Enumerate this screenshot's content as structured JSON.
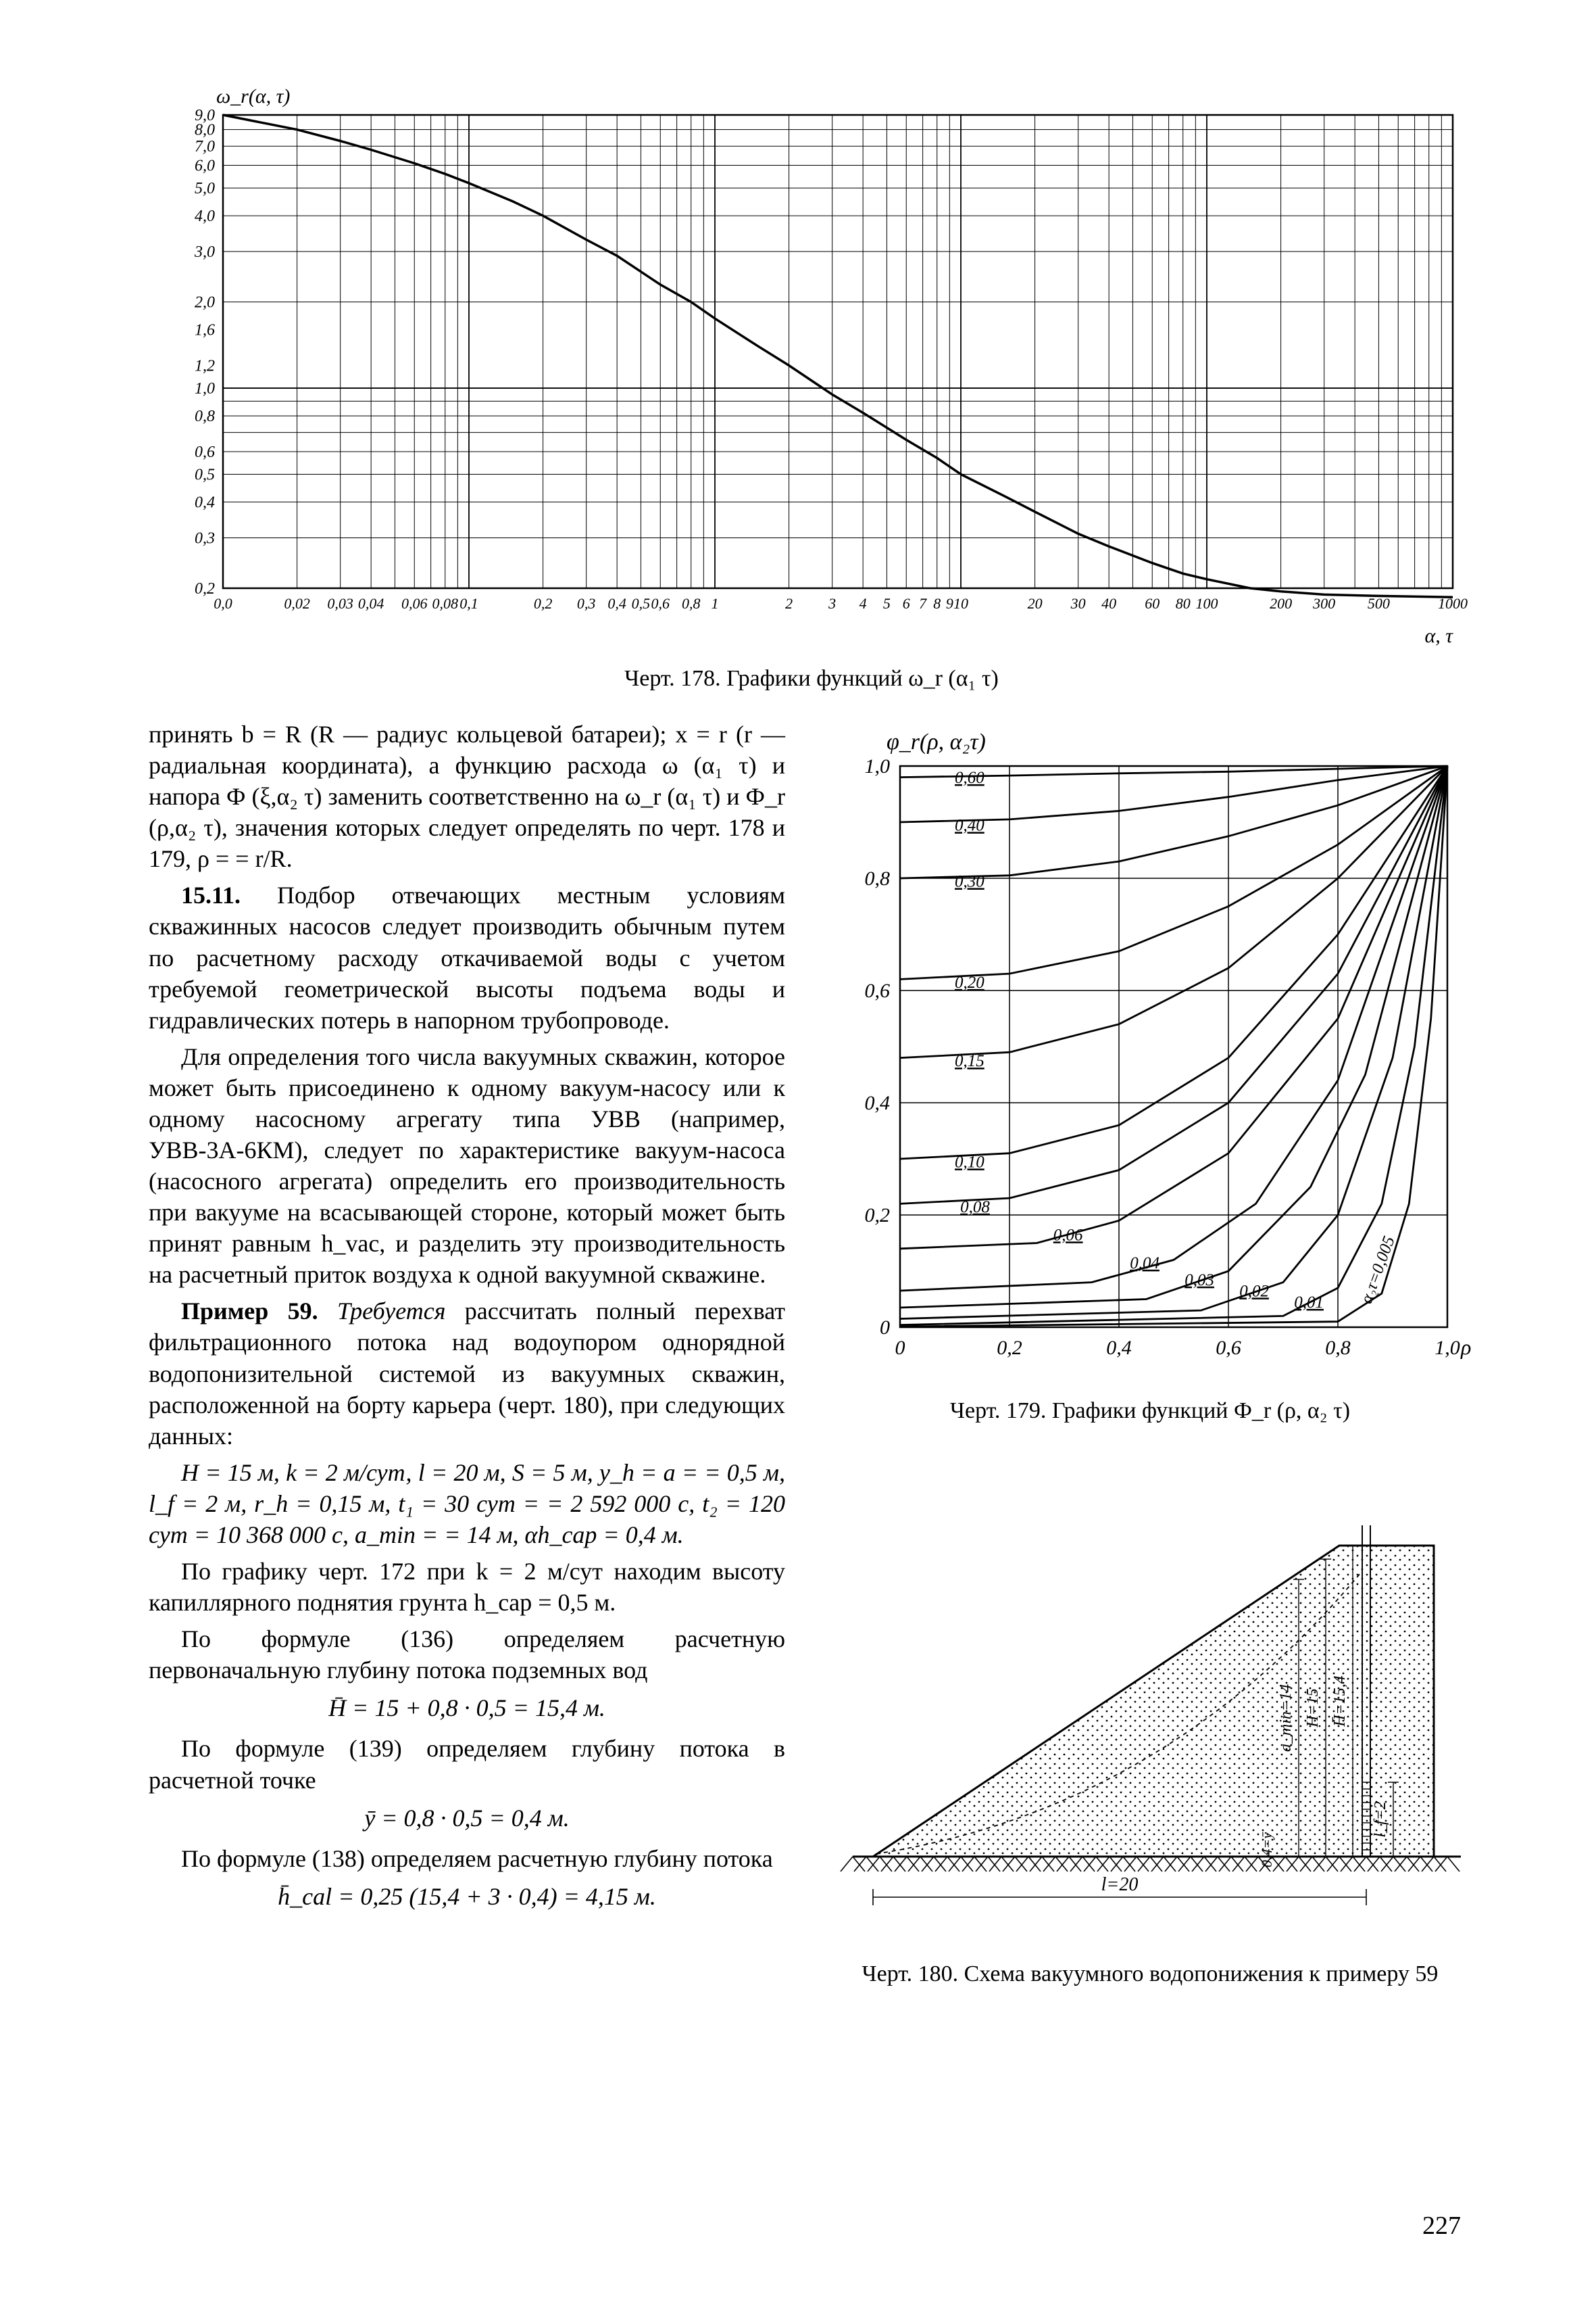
{
  "page_number": "227",
  "chart1": {
    "type": "line",
    "caption": "Черт. 178. Графики функций ω_r (α₁ τ)",
    "y_label": "ω_r(α, τ)",
    "x_label": "α, τ",
    "background_color": "#ffffff",
    "grid_color": "#000000",
    "line_color": "#000000",
    "line_width": 3.5,
    "x_scale": "log",
    "y_scale": "log",
    "xlim": [
      0.01,
      1000
    ],
    "ylim": [
      0.2,
      9.0
    ],
    "x_ticks_labels": [
      "0,01",
      "0,02",
      "0,03",
      "0,04",
      "0,06",
      "0,08",
      "0,1",
      "0,2",
      "0,3",
      "0,4",
      "0,5",
      "0,6",
      "0,8",
      "1",
      "2",
      "3",
      "4",
      "5",
      "6",
      "7",
      "8",
      "9",
      "10",
      "20",
      "30",
      "40",
      "60",
      "80",
      "100",
      "200",
      "300",
      "500",
      "1000"
    ],
    "y_ticks_labels": [
      "0,2",
      "0,3",
      "0,4",
      "0,5",
      "0,6",
      "0,8",
      "1,0",
      "1,2",
      "1,6",
      "2,0",
      "3,0",
      "4,0",
      "5,0",
      "6,0",
      "7,0",
      "8,0",
      "9,0"
    ],
    "curve_points_xy": [
      [
        0.01,
        9.0
      ],
      [
        0.015,
        8.4
      ],
      [
        0.02,
        8.0
      ],
      [
        0.03,
        7.3
      ],
      [
        0.04,
        6.8
      ],
      [
        0.06,
        6.1
      ],
      [
        0.08,
        5.6
      ],
      [
        0.1,
        5.2
      ],
      [
        0.15,
        4.5
      ],
      [
        0.2,
        4.0
      ],
      [
        0.3,
        3.3
      ],
      [
        0.4,
        2.9
      ],
      [
        0.6,
        2.3
      ],
      [
        0.8,
        2.0
      ],
      [
        1.0,
        1.75
      ],
      [
        1.5,
        1.4
      ],
      [
        2.0,
        1.2
      ],
      [
        3.0,
        0.95
      ],
      [
        4.0,
        0.82
      ],
      [
        6.0,
        0.66
      ],
      [
        8.0,
        0.57
      ],
      [
        10,
        0.5
      ],
      [
        15,
        0.42
      ],
      [
        20,
        0.37
      ],
      [
        30,
        0.31
      ],
      [
        40,
        0.28
      ],
      [
        60,
        0.245
      ],
      [
        80,
        0.225
      ],
      [
        100,
        0.215
      ],
      [
        150,
        0.2
      ],
      [
        200,
        0.195
      ],
      [
        300,
        0.19
      ],
      [
        500,
        0.188
      ],
      [
        1000,
        0.186
      ]
    ]
  },
  "chart2": {
    "type": "line",
    "caption": "Черт. 179. Графики функций Ф_r (ρ, α₂ τ)",
    "y_label": "φ_r(ρ, α₂τ)",
    "x_label": "ρ",
    "background_color": "#ffffff",
    "grid_color": "#000000",
    "line_color": "#000000",
    "line_width": 2.8,
    "x_scale": "linear",
    "y_scale": "linear",
    "xlim": [
      0,
      1.0
    ],
    "ylim": [
      0,
      1.0
    ],
    "x_ticks": [
      0,
      0.2,
      0.4,
      0.6,
      0.8,
      1.0
    ],
    "x_ticks_labels": [
      "0",
      "0,2",
      "0,4",
      "0,6",
      "0,8",
      "1,0"
    ],
    "y_ticks": [
      0,
      0.2,
      0.4,
      0.6,
      0.8,
      1.0
    ],
    "y_ticks_labels": [
      "0",
      "0,2",
      "0,4",
      "0,6",
      "0,8",
      "1,0"
    ],
    "curve_param_labels": [
      "0,60",
      "0,40",
      "0,30",
      "0,20",
      "0,15",
      "0,10",
      "0,08",
      "0,06",
      "0,04",
      "0,03",
      "0,02",
      "0,01",
      "α₂τ=0,005"
    ],
    "curves": {
      "0.60": [
        [
          0,
          0.98
        ],
        [
          0.2,
          0.983
        ],
        [
          0.4,
          0.987
        ],
        [
          0.6,
          0.99
        ],
        [
          0.8,
          0.995
        ],
        [
          1.0,
          1.0
        ]
      ],
      "0.40": [
        [
          0,
          0.9
        ],
        [
          0.2,
          0.905
        ],
        [
          0.4,
          0.92
        ],
        [
          0.6,
          0.945
        ],
        [
          0.8,
          0.975
        ],
        [
          1.0,
          1.0
        ]
      ],
      "0.30": [
        [
          0,
          0.8
        ],
        [
          0.2,
          0.805
        ],
        [
          0.4,
          0.83
        ],
        [
          0.6,
          0.875
        ],
        [
          0.8,
          0.93
        ],
        [
          1.0,
          1.0
        ]
      ],
      "0.20": [
        [
          0,
          0.62
        ],
        [
          0.2,
          0.63
        ],
        [
          0.4,
          0.67
        ],
        [
          0.6,
          0.75
        ],
        [
          0.8,
          0.86
        ],
        [
          1.0,
          1.0
        ]
      ],
      "0.15": [
        [
          0,
          0.48
        ],
        [
          0.2,
          0.49
        ],
        [
          0.4,
          0.54
        ],
        [
          0.6,
          0.64
        ],
        [
          0.8,
          0.8
        ],
        [
          1.0,
          1.0
        ]
      ],
      "0.10": [
        [
          0,
          0.3
        ],
        [
          0.2,
          0.31
        ],
        [
          0.4,
          0.36
        ],
        [
          0.6,
          0.48
        ],
        [
          0.8,
          0.7
        ],
        [
          1.0,
          1.0
        ]
      ],
      "0.08": [
        [
          0,
          0.22
        ],
        [
          0.2,
          0.23
        ],
        [
          0.4,
          0.28
        ],
        [
          0.6,
          0.4
        ],
        [
          0.8,
          0.63
        ],
        [
          1.0,
          1.0
        ]
      ],
      "0.06": [
        [
          0,
          0.14
        ],
        [
          0.25,
          0.15
        ],
        [
          0.4,
          0.19
        ],
        [
          0.6,
          0.31
        ],
        [
          0.8,
          0.55
        ],
        [
          1.0,
          1.0
        ]
      ],
      "0.04": [
        [
          0,
          0.065
        ],
        [
          0.35,
          0.08
        ],
        [
          0.5,
          0.12
        ],
        [
          0.65,
          0.22
        ],
        [
          0.8,
          0.44
        ],
        [
          1.0,
          1.0
        ]
      ],
      "0.03": [
        [
          0,
          0.035
        ],
        [
          0.45,
          0.05
        ],
        [
          0.6,
          0.1
        ],
        [
          0.75,
          0.25
        ],
        [
          0.85,
          0.45
        ],
        [
          1.0,
          1.0
        ]
      ],
      "0.02": [
        [
          0,
          0.015
        ],
        [
          0.55,
          0.03
        ],
        [
          0.7,
          0.08
        ],
        [
          0.8,
          0.2
        ],
        [
          0.9,
          0.48
        ],
        [
          1.0,
          1.0
        ]
      ],
      "0.01": [
        [
          0,
          0.004
        ],
        [
          0.7,
          0.02
        ],
        [
          0.8,
          0.07
        ],
        [
          0.88,
          0.22
        ],
        [
          0.94,
          0.5
        ],
        [
          1.0,
          1.0
        ]
      ],
      "0.005": [
        [
          0,
          0.001
        ],
        [
          0.8,
          0.01
        ],
        [
          0.88,
          0.06
        ],
        [
          0.93,
          0.22
        ],
        [
          0.97,
          0.55
        ],
        [
          1.0,
          1.0
        ]
      ]
    }
  },
  "diagram3": {
    "caption": "Черт. 180. Схема вакуумного водопонижения к примеру 59",
    "labels": {
      "l": "l=20",
      "H": "H=15",
      "Hbar": "H̄=15,4",
      "amin": "a_min=14",
      "lf": "l_f=2",
      "ybar": "0,4=ȳ"
    },
    "hatch_color": "#000000",
    "fill_color": "#f0f0f0"
  },
  "text": {
    "p1": "принять b = R (R — радиус кольцевой батареи); x = r (r — радиальная координата), а функцию расхода ω (α₁ τ) и напора Ф (ξ,α₂ τ) заменить соответственно на ω_r (α₁ τ) и Ф_r (ρ,α₂ τ), значения которых следует определять по черт. 178 и 179, ρ = = r/R.",
    "p2_head": "15.11.",
    "p2": " Подбор отвечающих местным условиям скважинных насосов следует производить обычным путем по расчетному расходу откачиваемой воды с учетом требуемой геометрической высоты подъема воды и гидравлических потерь в напорном трубопроводе.",
    "p3": "Для определения того числа вакуумных скважин, которое может быть присоединено к одному вакуум-насосу или к одному насосному агрегату типа УВВ (например, УВВ-3А-6КМ), следует по характеристике вакуум-насоса (насосного агрегата) определить его производительность при вакууме на всасывающей стороне, который может быть принят равным h_vac, и разделить эту производительность на расчетный приток воздуха к одной вакуумной скважине.",
    "p4_head": "Пример 59. ",
    "p4_em": "Требуется",
    "p4": " рассчитать полный перехват фильтрационного потока над водоупором однорядной водопонизительной системой из вакуумных скважин, расположенной на борту карьера (черт. 180), при следующих данных:",
    "p5": "H = 15 м, k = 2 м/сут, l = 20 м, S = 5 м, y_h = a = = 0,5 м, l_f = 2 м, r_h = 0,15 м, t₁ = 30 сут = = 2 592 000 с, t₂ = 120 сут = 10 368 000 с, a_min = = 14 м, αh_cap = 0,4 м.",
    "p6": "По графику черт. 172 при k = 2 м/сут находим высоту капиллярного поднятия грунта h_cap = 0,5 м.",
    "p7": "По формуле (136) определяем расчетную первоначальную глубину потока подземных вод",
    "f1": "H̄ = 15 + 0,8 · 0,5 = 15,4 м.",
    "p8": "По формуле (139) определяем глубину потока в расчетной точке",
    "f2": "ȳ = 0,8 · 0,5 = 0,4 м.",
    "p9": "По формуле (138) определяем расчетную глубину потока",
    "f3": "h̄_cal = 0,25 (15,4 + 3 · 0,4) = 4,15 м."
  }
}
